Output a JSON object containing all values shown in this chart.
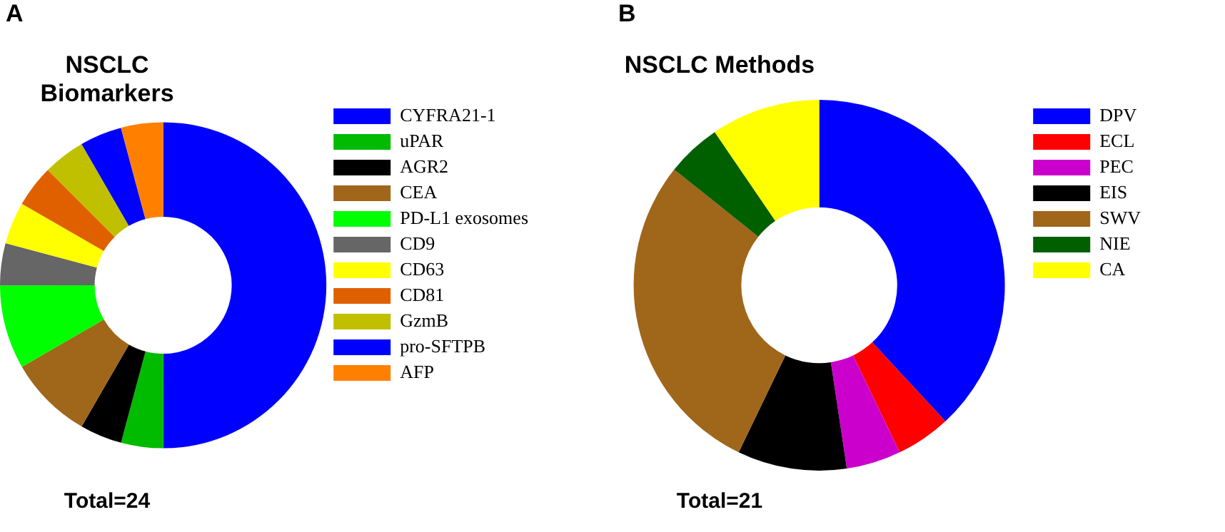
{
  "chart_data": [
    {
      "type": "donut",
      "title": "NSCLC Biomarkers",
      "annotations": [
        "A",
        "Total=24"
      ],
      "legend": "right",
      "categories": [
        "CYFRA21-1",
        "uPAR",
        "AGR2",
        "CEA",
        "PD-L1 exosomes",
        "CD9",
        "CD63",
        "CD81",
        "GzmB",
        "pro-SFTPB",
        "AFP"
      ],
      "values": [
        50,
        4.17,
        4.17,
        8.33,
        8.33,
        4.17,
        4.17,
        4.17,
        4.17,
        4.17,
        4.17
      ],
      "colors": [
        "#0000ff",
        "#00bb00",
        "#000000",
        "#a0661a",
        "#00ff00",
        "#666666",
        "#ffff00",
        "#e06000",
        "#c0c000",
        "#0000ff",
        "#ff8000"
      ]
    },
    {
      "type": "donut",
      "title": "NSCLC Methods",
      "annotations": [
        "B",
        "Total=21"
      ],
      "legend": "right",
      "categories": [
        "DPV",
        "ECL",
        "PEC",
        "EIS",
        "SWV",
        "NIE",
        "CA"
      ],
      "values": [
        38.1,
        4.76,
        4.76,
        9.52,
        28.57,
        4.76,
        9.52
      ],
      "colors": [
        "#0000ff",
        "#ff0000",
        "#cc00cc",
        "#000000",
        "#a0661a",
        "#006000",
        "#ffff00"
      ]
    }
  ]
}
